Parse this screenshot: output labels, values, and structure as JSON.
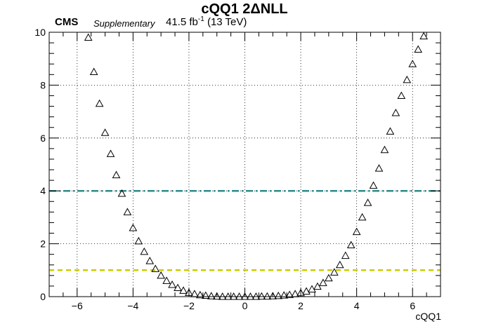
{
  "chart_data": {
    "type": "scatter",
    "title": "cQQ1 2ΔNLL",
    "experiment": "CMS",
    "status": "Supplementary",
    "lumi_value": "41.5 fb",
    "lumi_exponent": "-1",
    "lumi_energy": "(13 TeV)",
    "xlabel": "cQQ1",
    "ylabel": "",
    "xlim": [
      -7,
      7
    ],
    "ylim": [
      0,
      10
    ],
    "xticks": [
      -6,
      -4,
      -2,
      0,
      2,
      4,
      6
    ],
    "xtick_labels": [
      "−6",
      "−4",
      "−2",
      "0",
      "2",
      "4",
      "6"
    ],
    "yticks": [
      0,
      2,
      4,
      6,
      8,
      10
    ],
    "ytick_labels": [
      "0",
      "2",
      "4",
      "6",
      "8",
      "10"
    ],
    "grid": true,
    "marker": "open-triangle",
    "series": [
      {
        "marker_color": "#000000",
        "x": [
          -5.6,
          -5.4,
          -5.2,
          -5.0,
          -4.8,
          -4.6,
          -4.4,
          -4.2,
          -4.0,
          -3.8,
          -3.6,
          -3.4,
          -3.2,
          -3.0,
          -2.8,
          -2.6,
          -2.4,
          -2.2,
          -2.0,
          -1.8,
          -1.6,
          -1.4,
          -1.2,
          -1.0,
          -0.8,
          -0.6,
          -0.4,
          -0.2,
          0.0,
          0.2,
          0.4,
          0.6,
          0.8,
          1.0,
          1.2,
          1.4,
          1.6,
          1.8,
          2.0,
          2.2,
          2.4,
          2.6,
          2.8,
          3.0,
          3.2,
          3.4,
          3.6,
          3.8,
          4.0,
          4.2,
          4.4,
          4.6,
          4.8,
          5.0,
          5.2,
          5.4,
          5.6,
          5.8,
          6.0,
          6.2,
          6.4
        ],
        "y": [
          9.8,
          8.5,
          7.3,
          6.2,
          5.4,
          4.6,
          3.9,
          3.2,
          2.6,
          2.1,
          1.7,
          1.35,
          1.05,
          0.8,
          0.6,
          0.45,
          0.33,
          0.23,
          0.15,
          0.1,
          0.06,
          0.04,
          0.02,
          0.01,
          0.0,
          0.0,
          0.0,
          0.0,
          0.0,
          0.0,
          0.0,
          0.01,
          0.01,
          0.02,
          0.03,
          0.05,
          0.07,
          0.1,
          0.14,
          0.2,
          0.28,
          0.38,
          0.52,
          0.7,
          0.92,
          1.2,
          1.55,
          1.95,
          2.45,
          3.0,
          3.55,
          4.2,
          4.85,
          5.55,
          6.25,
          6.95,
          7.6,
          8.2,
          8.8,
          9.35,
          9.85
        ]
      }
    ],
    "reference_lines": [
      {
        "y": 4,
        "style": "dash-dot",
        "color": "#2e8b8b"
      },
      {
        "y": 1,
        "style": "dashed",
        "color": "#cccc00"
      }
    ]
  }
}
